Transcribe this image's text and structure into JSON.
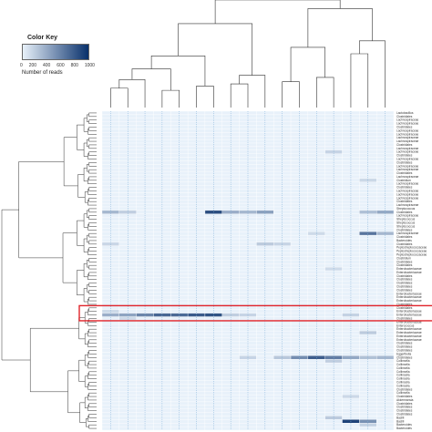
{
  "chart_data": {
    "type": "heatmap",
    "color_key": {
      "title": "Color Key",
      "label": "Number of reads",
      "ticks": [
        "0",
        "200",
        "400",
        "600",
        "800",
        "1000"
      ],
      "range": [
        0,
        1000
      ],
      "colors": [
        "#e8f1fa",
        "#08306b"
      ]
    },
    "n_rows": 90,
    "n_cols": 17,
    "row_labels": [
      "Lactobacillus",
      "Clostridiales",
      "Lachnospiraceae",
      "Lachnospiraceae",
      "Clostridiales",
      "Lachnospiraceae",
      "Lachnospiraceae",
      "Lachnospiraceae",
      "Lachnospiraceae",
      "Clostridiales",
      "Lachnospiraceae",
      "Lachnospiraceae",
      "Clostridiales",
      "Lachnospiraceae",
      "Clostridiales",
      "Lachnospiraceae",
      "Lachnospiraceae",
      "Clostridiales",
      "Lachnospiraceae",
      "Clostridium",
      "Lachnospiraceae",
      "Clostridiales",
      "Lachnospiraceae",
      "Lachnospiraceae",
      "Lachnospiraceae",
      "Clostridiales",
      "Lachnospiraceae",
      "Streptococcus",
      "Clostridiales",
      "Lachnospiraceae",
      "Streptococcus",
      "Streptococcus",
      "Streptococcus",
      "Clostridiales",
      "Lachnospiraceae",
      "Clostridiales",
      "Bacteroides",
      "Clostridiales",
      "Peptostreptococcaceae",
      "Peptostreptococcaceae",
      "Peptostreptococcaceae",
      "Clostridium",
      "Clostridiales",
      "Clostridiales",
      "Enterobacteriaceae",
      "Enterobacteriaceae",
      "Clostridiales",
      "Clostridiales",
      "Clostridiales",
      "Clostridiales",
      "Clostridiales",
      "Enterobacteriaceae",
      "Enterobacteriaceae",
      "Enterobacteriaceae",
      "Clostridiales",
      "Clostridiales",
      "Enterobacteriaceae",
      "Enterobacteriaceae",
      "Clostridiales",
      "Enterobacteriaceae",
      "Enterococcus",
      "Enterobacteriaceae",
      "Enterobacteriaceae",
      "Enterobacteriaceae",
      "Enterobacteriaceae",
      "Clostridiales",
      "Clostridiales",
      "Clostridiales",
      "Eggerthella",
      "Clostridiales",
      "Collinsella",
      "Collinsella",
      "Collinsella",
      "Collinsella",
      "Collinsella",
      "Collinsella",
      "Collinsella",
      "Collinsella",
      "Clostridiales",
      "Collinsella",
      "Clostridiales",
      "Akkermansia",
      "Clostridiales",
      "Clostridiales",
      "Clostridiales",
      "Clostridiales",
      "Bacilli",
      "Bacilli",
      "Bacteroides",
      "Bacteroides"
    ],
    "high_cells": [
      {
        "row": 28,
        "col": 0,
        "value": 300
      },
      {
        "row": 28,
        "col": 1,
        "value": 180
      },
      {
        "row": 28,
        "col": 6,
        "value": 850
      },
      {
        "row": 28,
        "col": 7,
        "value": 350
      },
      {
        "row": 28,
        "col": 8,
        "value": 300
      },
      {
        "row": 28,
        "col": 9,
        "value": 420
      },
      {
        "row": 28,
        "col": 15,
        "value": 260
      },
      {
        "row": 28,
        "col": 16,
        "value": 380
      },
      {
        "row": 34,
        "col": 15,
        "value": 640
      },
      {
        "row": 34,
        "col": 16,
        "value": 300
      },
      {
        "row": 34,
        "col": 12,
        "value": 120
      },
      {
        "row": 37,
        "col": 0,
        "value": 140
      },
      {
        "row": 37,
        "col": 9,
        "value": 200
      },
      {
        "row": 37,
        "col": 10,
        "value": 150
      },
      {
        "row": 44,
        "col": 13,
        "value": 120
      },
      {
        "row": 57,
        "col": 0,
        "value": 350
      },
      {
        "row": 57,
        "col": 1,
        "value": 400
      },
      {
        "row": 57,
        "col": 2,
        "value": 560
      },
      {
        "row": 57,
        "col": 3,
        "value": 720
      },
      {
        "row": 57,
        "col": 4,
        "value": 700
      },
      {
        "row": 57,
        "col": 5,
        "value": 780
      },
      {
        "row": 57,
        "col": 6,
        "value": 820
      },
      {
        "row": 57,
        "col": 7,
        "value": 180
      },
      {
        "row": 57,
        "col": 8,
        "value": 150
      },
      {
        "row": 57,
        "col": 14,
        "value": 160
      },
      {
        "row": 56,
        "col": 0,
        "value": 120
      },
      {
        "row": 58,
        "col": 1,
        "value": 120
      },
      {
        "row": 69,
        "col": 10,
        "value": 220
      },
      {
        "row": 69,
        "col": 11,
        "value": 520
      },
      {
        "row": 69,
        "col": 12,
        "value": 760
      },
      {
        "row": 69,
        "col": 13,
        "value": 600
      },
      {
        "row": 69,
        "col": 14,
        "value": 380
      },
      {
        "row": 69,
        "col": 15,
        "value": 250
      },
      {
        "row": 69,
        "col": 16,
        "value": 300
      },
      {
        "row": 69,
        "col": 8,
        "value": 150
      },
      {
        "row": 70,
        "col": 13,
        "value": 180
      },
      {
        "row": 62,
        "col": 15,
        "value": 200
      },
      {
        "row": 80,
        "col": 14,
        "value": 130
      },
      {
        "row": 87,
        "col": 14,
        "value": 900
      },
      {
        "row": 87,
        "col": 15,
        "value": 500
      },
      {
        "row": 86,
        "col": 13,
        "value": 200
      },
      {
        "row": 88,
        "col": 15,
        "value": 160
      },
      {
        "row": 11,
        "col": 13,
        "value": 150
      },
      {
        "row": 19,
        "col": 15,
        "value": 130
      }
    ],
    "highlight_rows": [
      55,
      58
    ],
    "highlight_color": "#e0242b"
  }
}
